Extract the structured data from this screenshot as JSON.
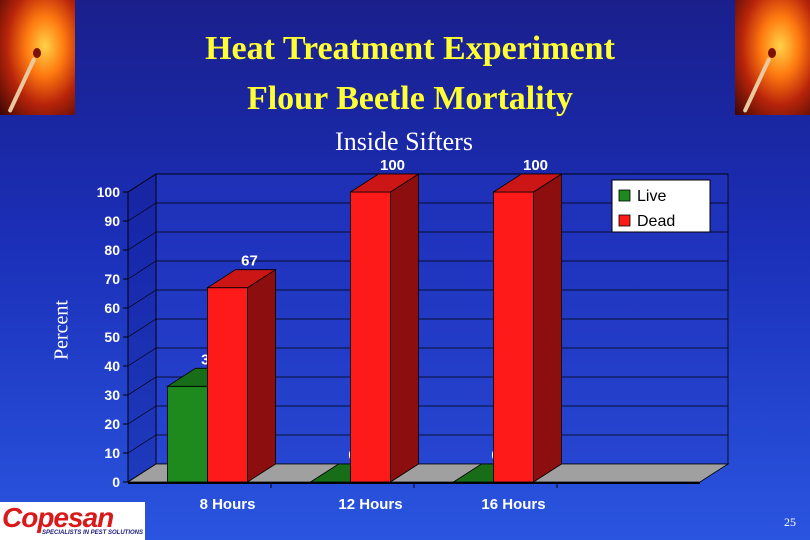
{
  "slide": {
    "title_line1": "Heat Treatment Experiment",
    "title_line2": "Flour Beetle Mortality",
    "page_number": "25",
    "logo_text": "Copesan",
    "logo_tagline": "SPECIALISTS IN PEST SOLUTIONS"
  },
  "colors": {
    "live": "#1e8a1e",
    "dead": "#ff1a1a",
    "title": "#ffff33",
    "background": "#1b2fb8"
  },
  "chart_data": {
    "type": "bar",
    "title": "Inside Sifters",
    "ylabel": "Percent",
    "xlabel": "",
    "categories": [
      "8 Hours",
      "12 Hours",
      "16 Hours"
    ],
    "series": [
      {
        "name": "Live",
        "values": [
          33,
          0,
          0
        ]
      },
      {
        "name": "Dead",
        "values": [
          67,
          100,
          100
        ]
      }
    ],
    "data_labels": [
      [
        "33",
        "0",
        "0"
      ],
      [
        "67",
        "100",
        "100"
      ]
    ],
    "ylim": [
      0,
      100
    ],
    "yticks": [
      "0",
      "10",
      "20",
      "30",
      "40",
      "50",
      "60",
      "70",
      "80",
      "90",
      "100"
    ],
    "grid": true,
    "legend": "top-right",
    "style": "3d"
  }
}
